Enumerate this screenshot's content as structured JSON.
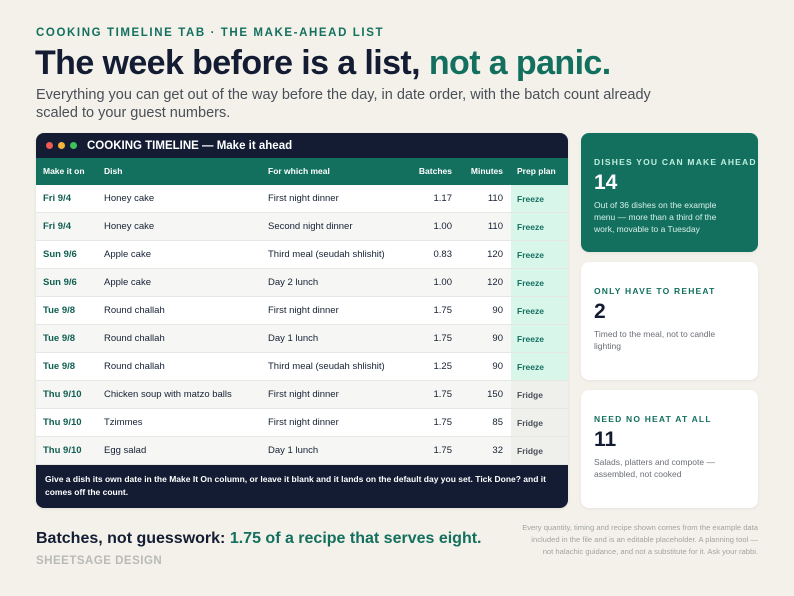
{
  "header": {
    "eyebrow": "COOKING TIMELINE TAB · THE MAKE-AHEAD LIST",
    "headline_lead": "The week before is a list,",
    "headline_accent": "not a panic.",
    "subtitle": "Everything you can get out of the way before the day, in date order, with the batch count already scaled to your guest numbers."
  },
  "window": {
    "title": "COOKING TIMELINE — Make it ahead"
  },
  "table": {
    "columns": [
      "Make it on",
      "Dish",
      "For which meal",
      "Batches",
      "Minutes",
      "Prep plan"
    ],
    "rows": [
      [
        "Fri 9/4",
        "Honey cake",
        "First night dinner",
        "1.17",
        "110",
        "Freeze"
      ],
      [
        "Fri 9/4",
        "Honey cake",
        "Second night dinner",
        "1.00",
        "110",
        "Freeze"
      ],
      [
        "Sun 9/6",
        "Apple cake",
        "Third meal (seudah shlishit)",
        "0.83",
        "120",
        "Freeze"
      ],
      [
        "Sun 9/6",
        "Apple cake",
        "Day 2 lunch",
        "1.00",
        "120",
        "Freeze"
      ],
      [
        "Tue 9/8",
        "Round challah",
        "First night dinner",
        "1.75",
        "90",
        "Freeze"
      ],
      [
        "Tue 9/8",
        "Round challah",
        "Day 1 lunch",
        "1.75",
        "90",
        "Freeze"
      ],
      [
        "Tue 9/8",
        "Round challah",
        "Third meal (seudah shlishit)",
        "1.25",
        "90",
        "Freeze"
      ],
      [
        "Thu 9/10",
        "Chicken soup with matzo balls",
        "First night dinner",
        "1.75",
        "150",
        "Fridge"
      ],
      [
        "Thu 9/10",
        "Tzimmes",
        "First night dinner",
        "1.75",
        "85",
        "Fridge"
      ],
      [
        "Thu 9/10",
        "Egg salad",
        "Day 1 lunch",
        "1.75",
        "32",
        "Fridge"
      ]
    ],
    "footer": "Give a dish its own date in the Make It On column, or leave it blank and it lands on the default day you set. Tick Done? and it comes off the count."
  },
  "cards": [
    {
      "label": "DISHES YOU CAN MAKE AHEAD",
      "value": "14",
      "text": "Out of 36 dishes on the example menu — more than a third of the work, movable to a Tuesday"
    },
    {
      "label": "ONLY HAVE TO REHEAT",
      "value": "2",
      "text": "Timed to the meal, not to candle lighting"
    },
    {
      "label": "NEED NO HEAT AT ALL",
      "value": "11",
      "text": "Salads, platters and compote — assembled, not cooked"
    }
  ],
  "footer": {
    "tagline_lead": "Batches, not guesswork:",
    "tagline_accent": "1.75 of a recipe that serves eight.",
    "brand": "SHEETSAGE DESIGN",
    "disclaimer": "Every quantity, timing and recipe shown comes from the example data included in the file and is an editable placeholder. A planning tool — not halachic guidance, and not a substitute for it. Ask your rabbi."
  }
}
